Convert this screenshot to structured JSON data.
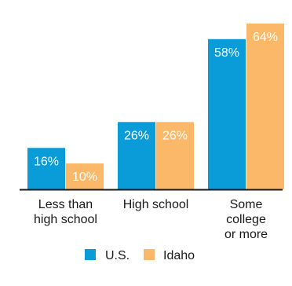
{
  "chart_data": {
    "type": "bar",
    "categories": [
      "Less than high school",
      "High school",
      "Some college or more"
    ],
    "category_lines": [
      [
        "Less than",
        "high school"
      ],
      [
        "High school"
      ],
      [
        "Some",
        "college",
        "or more"
      ]
    ],
    "series": [
      {
        "name": "U.S.",
        "values": [
          16,
          26,
          58
        ],
        "labels": [
          "16%",
          "26%",
          "58%"
        ],
        "color": "#0a9bd9"
      },
      {
        "name": "Idaho",
        "values": [
          10,
          26,
          64
        ],
        "labels": [
          "10%",
          "26%",
          "64%"
        ],
        "color": "#fbb868"
      }
    ],
    "ylim": [
      0,
      64
    ],
    "grid": false,
    "legend": "bottom",
    "title": "",
    "xlabel": "",
    "ylabel": ""
  },
  "legend": {
    "items": [
      {
        "label": "U.S.",
        "color": "#0a9bd9"
      },
      {
        "label": "Idaho",
        "color": "#fbb868"
      }
    ]
  },
  "colors": {
    "baseline": "#1a1a1a"
  }
}
